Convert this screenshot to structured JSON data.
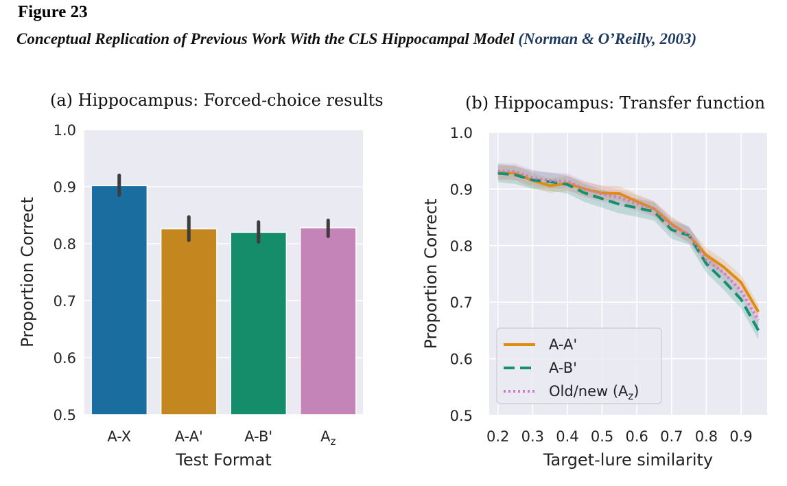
{
  "figure": {
    "number": "Figure 23",
    "caption_main": "Conceptual Replication of Previous Work With the CLS Hippocampal Model",
    "caption_cite": "(Norman & O’Reilly, 2003)"
  },
  "chart_data": [
    {
      "type": "bar",
      "title": "(a) Hippocampus: Forced-choice results",
      "xlabel": "Test Format",
      "ylabel": "Proportion Correct",
      "ylim": [
        0.5,
        1.0
      ],
      "yticks": [
        "0.5",
        "0.6",
        "0.7",
        "0.8",
        "0.9",
        "1.0"
      ],
      "categories": [
        "A-X",
        "A-A'",
        "A-B'",
        "Az"
      ],
      "values": [
        0.902,
        0.826,
        0.82,
        0.828
      ],
      "error_low": [
        0.885,
        0.806,
        0.803,
        0.813
      ],
      "error_high": [
        0.92,
        0.847,
        0.838,
        0.841
      ],
      "colors": [
        "#1a6e9f",
        "#c4861e",
        "#168d6a",
        "#c484b8"
      ],
      "grid": true
    },
    {
      "type": "line",
      "title": "(b) Hippocampus: Transfer function",
      "xlabel": "Target-lure similarity",
      "ylabel": "Proportion Correct",
      "xlim": [
        0.175,
        0.975
      ],
      "ylim": [
        0.5,
        1.0
      ],
      "xticks": [
        "0.2",
        "0.3",
        "0.4",
        "0.5",
        "0.6",
        "0.7",
        "0.8",
        "0.9"
      ],
      "yticks": [
        "0.5",
        "0.6",
        "0.7",
        "0.8",
        "0.9",
        "1.0"
      ],
      "x": [
        0.2,
        0.25,
        0.3,
        0.35,
        0.4,
        0.45,
        0.5,
        0.55,
        0.6,
        0.65,
        0.7,
        0.75,
        0.8,
        0.85,
        0.9,
        0.95
      ],
      "series": [
        {
          "name": "A-A'",
          "style": "solid",
          "color": "#df8c12",
          "values": [
            0.929,
            0.928,
            0.915,
            0.906,
            0.91,
            0.9,
            0.893,
            0.892,
            0.878,
            0.865,
            0.838,
            0.818,
            0.783,
            0.762,
            0.735,
            0.683
          ],
          "band": 0.013
        },
        {
          "name": "A-B'",
          "style": "dashed",
          "color": "#13906e",
          "values": [
            0.928,
            0.925,
            0.916,
            0.913,
            0.908,
            0.893,
            0.883,
            0.873,
            0.867,
            0.86,
            0.828,
            0.818,
            0.768,
            0.738,
            0.705,
            0.65
          ],
          "band": 0.016
        },
        {
          "name": "Old/new (A",
          "name_sub": "z",
          "name_tail": ")",
          "style": "dotted",
          "color": "#d17cc7",
          "values": [
            0.932,
            0.931,
            0.92,
            0.915,
            0.914,
            0.9,
            0.891,
            0.885,
            0.874,
            0.865,
            0.835,
            0.82,
            0.775,
            0.752,
            0.72,
            0.668
          ],
          "band": 0.014
        }
      ],
      "legend": "bottom-left",
      "grid": true
    }
  ]
}
